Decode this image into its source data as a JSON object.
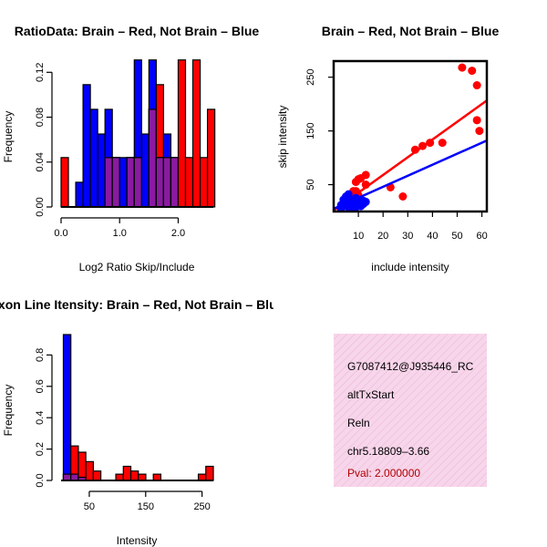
{
  "colors": {
    "red": "#ff0000",
    "blue": "#0000ff",
    "overlap": "#8a1aa0",
    "axis": "#000000",
    "info_bg": "#f7d5ea",
    "pval": "#b00000"
  },
  "chart_data": [
    {
      "type": "bar",
      "title": "RatioData: Brain – Red, Not Brain – Blue",
      "xlabel": "Log2 Ratio Skip/Include",
      "ylabel": "Frequency",
      "xlim": [
        0.0,
        2.6
      ],
      "ylim": [
        0.0,
        0.13
      ],
      "xticks": [
        "0.0",
        "1.0",
        "2.0"
      ],
      "yticks": [
        "0.00",
        "0.04",
        "0.08",
        "0.12"
      ],
      "bin_start": 0.0,
      "bin_width": 0.125,
      "series": [
        {
          "name": "Brain",
          "color": "red",
          "values": [
            0.044,
            0,
            0,
            0,
            0,
            0,
            0.044,
            0.044,
            0,
            0.044,
            0.044,
            0,
            0.087,
            0.109,
            0.044,
            0.044,
            0.131,
            0.044,
            0.131,
            0.044,
            0.087
          ]
        },
        {
          "name": "Not Brain",
          "color": "blue",
          "values": [
            0,
            0,
            0.022,
            0.109,
            0.087,
            0.065,
            0.087,
            0.044,
            0.044,
            0.044,
            0.131,
            0.065,
            0.131,
            0.044,
            0.065,
            0.044,
            0,
            0,
            0,
            0,
            0
          ]
        }
      ]
    },
    {
      "type": "scatter",
      "title": "Brain – Red, Not Brain – Blue",
      "xlabel": "include intensity",
      "ylabel": "skip intensity",
      "xlim": [
        0,
        62
      ],
      "ylim": [
        0,
        280
      ],
      "xticks": [
        10,
        20,
        30,
        40,
        50,
        60
      ],
      "yticks": [
        50,
        150,
        250
      ],
      "series": [
        {
          "name": "Brain",
          "color": "red",
          "points": [
            [
              52,
              268
            ],
            [
              56,
              262
            ],
            [
              58,
              235
            ],
            [
              58,
              170
            ],
            [
              59,
              150
            ],
            [
              44,
              128
            ],
            [
              39,
              128
            ],
            [
              36,
              122
            ],
            [
              33,
              115
            ],
            [
              28,
              28
            ],
            [
              23,
              45
            ],
            [
              13,
              68
            ],
            [
              13,
              50
            ],
            [
              11,
              62
            ],
            [
              10,
              60
            ],
            [
              9,
              55
            ],
            [
              9,
              38
            ],
            [
              8,
              38
            ],
            [
              7,
              30
            ],
            [
              8,
              22
            ],
            [
              10,
              30
            ],
            [
              6,
              18
            ],
            [
              5,
              12
            ]
          ],
          "fit": {
            "intercept": 2,
            "slope": 3.3
          }
        },
        {
          "name": "Not Brain",
          "color": "blue",
          "points": [
            [
              3,
              5
            ],
            [
              4,
              15
            ],
            [
              4,
              10
            ],
            [
              5,
              20
            ],
            [
              5,
              12
            ],
            [
              6,
              25
            ],
            [
              6,
              14
            ],
            [
              6,
              8
            ],
            [
              7,
              12
            ],
            [
              7,
              22
            ],
            [
              8,
              10
            ],
            [
              8,
              18
            ],
            [
              9,
              15
            ],
            [
              9,
              8
            ],
            [
              10,
              12
            ],
            [
              10,
              20
            ],
            [
              11,
              10
            ],
            [
              11,
              16
            ],
            [
              12,
              14
            ],
            [
              12,
              20
            ],
            [
              13,
              18
            ],
            [
              4,
              22
            ],
            [
              5,
              28
            ],
            [
              6,
              32
            ],
            [
              7,
              6
            ],
            [
              8,
              4
            ],
            [
              3,
              12
            ],
            [
              9,
              25
            ]
          ],
          "fit": {
            "intercept": 5,
            "slope": 2.05
          }
        }
      ]
    },
    {
      "type": "bar",
      "title": "Exon Line Itensity: Brain – Red, Not Brain – Blue",
      "xlabel": "Intensity",
      "ylabel": "Frequency",
      "xlim": [
        0,
        270
      ],
      "ylim": [
        0,
        0.93
      ],
      "xticks": [
        "50",
        "150",
        "250"
      ],
      "yticks": [
        "0.0",
        "0.2",
        "0.4",
        "0.6",
        "0.8"
      ],
      "bin_start": 4,
      "bin_width": 13.3,
      "series": [
        {
          "name": "Brain",
          "color": "red",
          "values": [
            0.04,
            0.22,
            0.18,
            0.12,
            0.06,
            0,
            0,
            0.04,
            0.09,
            0.06,
            0.04,
            0,
            0.04,
            0,
            0,
            0,
            0,
            0,
            0.04,
            0.09
          ]
        },
        {
          "name": "Not Brain",
          "color": "blue",
          "values": [
            0.93,
            0.04,
            0.02,
            0,
            0,
            0,
            0,
            0,
            0,
            0,
            0,
            0,
            0,
            0,
            0,
            0,
            0,
            0,
            0,
            0
          ]
        }
      ]
    }
  ],
  "info": {
    "id": "G7087412@J935446_RC",
    "event_type": "altTxStart",
    "gene": "Reln",
    "location": "chr5.18809–3.66",
    "pval": "Pval: 2.000000"
  }
}
